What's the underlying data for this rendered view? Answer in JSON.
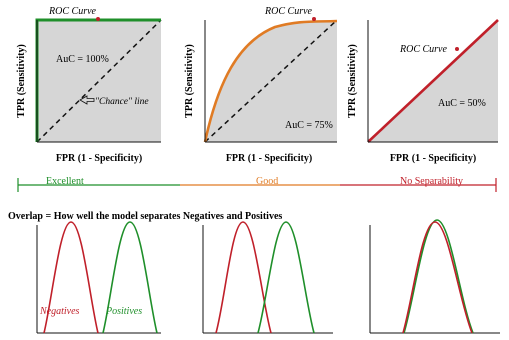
{
  "panels": [
    {
      "roc_label": "ROC Curve",
      "auc_label": "AuC = 100%",
      "chance_label": "\"Chance\" line",
      "y_label": "TPR (Sensitivity)",
      "x_label": "FPR (1 - Specificity)"
    },
    {
      "roc_label": "ROC Curve",
      "auc_label": "AuC = 75%",
      "y_label": "TPR (Sensitivity)",
      "x_label": "FPR (1 - Specificity)"
    },
    {
      "roc_label": "ROC Curve",
      "auc_label": "AuC = 50%",
      "y_label": "TPR (Sensitivity)",
      "x_label": "FPR (1 - Specificity)"
    }
  ],
  "scale": {
    "excellent": "Excellent",
    "good": "Good",
    "no_separability": "No Separability"
  },
  "overlap_title": "Overlap = How well the model separates Negatives and Positives",
  "distributions": {
    "negatives": "Negatives",
    "positives": "Positives"
  },
  "colors": {
    "excellent": "#1f8f2a",
    "good": "#e07b24",
    "poor": "#c0202a",
    "negatives": "#c0202a",
    "positives": "#1f8f2a",
    "fill": "#d6d6d6"
  }
}
